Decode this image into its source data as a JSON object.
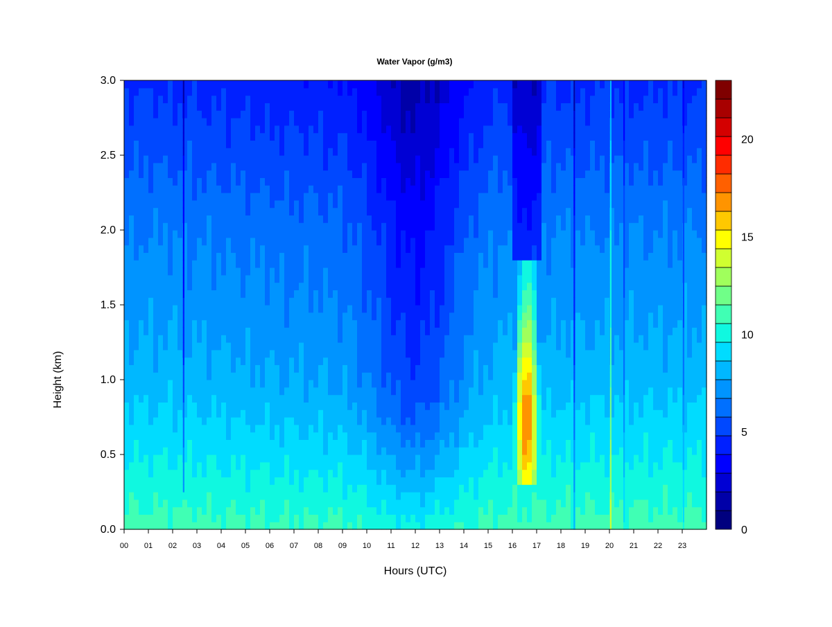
{
  "chart_data": {
    "type": "heatmap",
    "title": "Water Vapor (g/m3)",
    "xlabel": "Hours (UTC)",
    "ylabel": "Height (km)",
    "xlim": [
      0,
      24
    ],
    "ylim": [
      0,
      3
    ],
    "x_tick_labels": [
      "00",
      "01",
      "02",
      "03",
      "04",
      "05",
      "06",
      "07",
      "08",
      "09",
      "10",
      "11",
      "12",
      "13",
      "14",
      "15",
      "16",
      "17",
      "18",
      "19",
      "20",
      "21",
      "22",
      "23"
    ],
    "y_tick_labels": [
      "0.0",
      "0.5",
      "1.0",
      "1.5",
      "2.0",
      "2.5",
      "3.0"
    ],
    "colorbar": {
      "range": [
        0,
        23
      ],
      "tick_labels": [
        "0",
        "5",
        "10",
        "15",
        "20"
      ],
      "levels": [
        0,
        1,
        2,
        3,
        4,
        5,
        6,
        7,
        8,
        9,
        10,
        11,
        12,
        13,
        14,
        15,
        16,
        17,
        18,
        19,
        20,
        21,
        22,
        23
      ],
      "colors": [
        "#00007f",
        "#0000a8",
        "#0000d4",
        "#0000ff",
        "#0020ff",
        "#0048ff",
        "#0070ff",
        "#0094ff",
        "#00b8ff",
        "#00dcff",
        "#10f8e0",
        "#40ffb4",
        "#70ff88",
        "#a0ff5c",
        "#d0ff30",
        "#ffff00",
        "#ffc800",
        "#ff9400",
        "#ff6000",
        "#ff2c00",
        "#ff0000",
        "#d40000",
        "#a80000",
        "#7f0000"
      ]
    },
    "base_profile": {
      "heights_km": [
        0,
        0.2,
        0.4,
        0.7,
        1.0,
        1.5,
        2.0,
        2.5,
        3.0
      ],
      "values": [
        11,
        10.4,
        9.8,
        9.0,
        8.2,
        7.4,
        6.7,
        5.6,
        4.6
      ]
    },
    "time_anomalies": [
      {
        "center_h": 12.0,
        "width_h": 2.0,
        "delta": -3.0
      },
      {
        "center_h": 7.5,
        "width_h": 4.0,
        "delta": -0.5
      }
    ],
    "moist_events": [
      {
        "start_h": 16.0,
        "end_h": 17.2,
        "bottom_km": 0.3,
        "top_km": 1.8,
        "peak": 17,
        "center_km": 0.7
      }
    ],
    "spikes": [
      {
        "hour": 2.45,
        "delta": -3,
        "low_km": 0.25
      },
      {
        "hour": 18.55,
        "delta": -3,
        "low_km": 0
      },
      {
        "hour": 20.05,
        "delta": 3,
        "low_km": 0
      },
      {
        "hour": 20.6,
        "delta": -1.5,
        "low_km": 0
      },
      {
        "hour": 23.05,
        "delta": -1.5,
        "low_km": 0
      }
    ]
  }
}
